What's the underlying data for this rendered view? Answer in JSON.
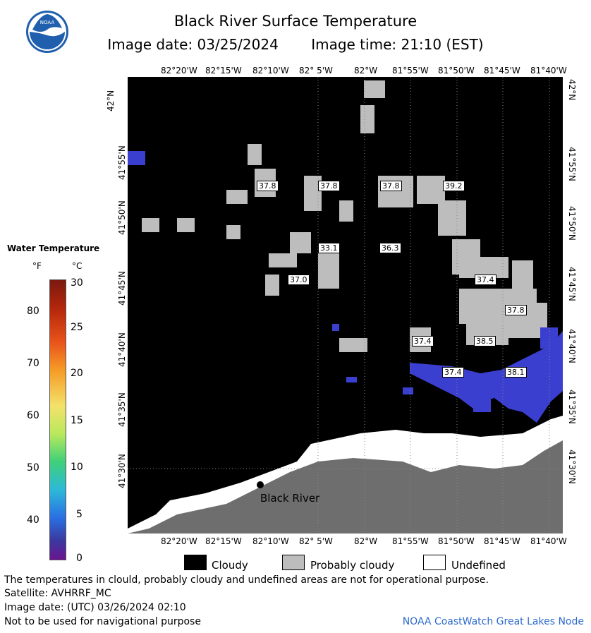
{
  "title": "Black River Surface Temperature",
  "image_date": "Image date: 03/25/2024",
  "image_time": "Image time: 21:10 (EST)",
  "logo_text": "NOAA",
  "longitudes": [
    "82°20'W",
    "82°15'W",
    "82°10'W",
    "82° 5'W",
    "82°W",
    "81°55'W",
    "81°50'W",
    "81°45'W",
    "81°40'W"
  ],
  "latitudes": [
    "42°N",
    "41°55'N",
    "41°50'N",
    "41°45'N",
    "41°40'N",
    "41°35'N",
    "41°30'N"
  ],
  "place_label": "Black River",
  "temp_labels": [
    "37.8",
    "37.8",
    "37.8",
    "39.2",
    "33.1",
    "36.3",
    "37.0",
    "37.4",
    "37.8",
    "37.4",
    "38.5",
    "37.4",
    "38.1"
  ],
  "legend": {
    "title": "Water Temperature",
    "unit_f": "°F",
    "unit_c": "°C",
    "ticks_f": [
      "80",
      "70",
      "60",
      "50",
      "40"
    ],
    "ticks_c": [
      "30",
      "25",
      "20",
      "15",
      "10",
      "5",
      "0"
    ]
  },
  "key": {
    "cloudy": "Cloudy",
    "probably_cloudy": "Probably cloudy",
    "undefined": "Undefined",
    "cloudy_color": "#000000",
    "probably_cloudy_color": "#bdbdbd",
    "undefined_color": "#ffffff"
  },
  "footer": {
    "note": "The temperatures in clould, probably cloudy and undefined areas are not for operational purpose.",
    "satellite": "Satellite: AVHRRF_MC",
    "utc_date": "Image date: (UTC) 03/26/2024  02:10",
    "nav": "Not to be used for navigational purpose",
    "credit": "NOAA CoastWatch Great Lakes Node"
  },
  "colors": {
    "water_warm": "#3a3fd0",
    "land": "#6e6e6e",
    "cloud_gray": "#bdbdbd"
  }
}
